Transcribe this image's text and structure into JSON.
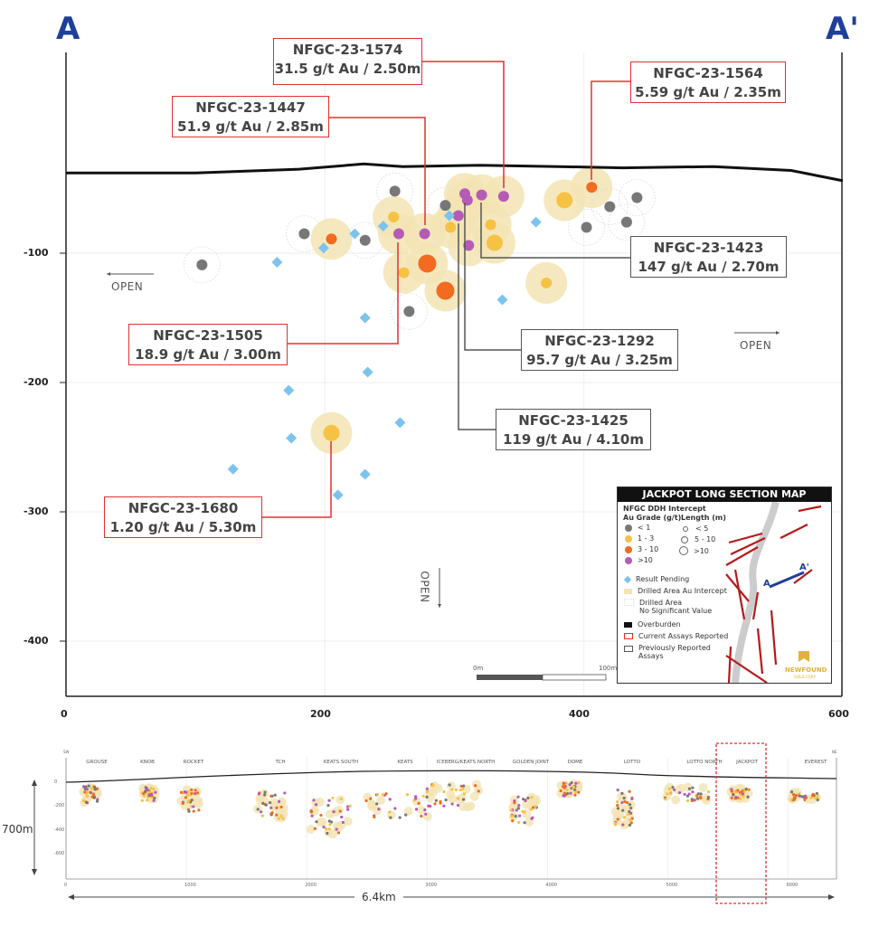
{
  "section_labels": {
    "start": "A",
    "end": "A'"
  },
  "axes": {
    "x_ticks": [
      0,
      200,
      400,
      600
    ],
    "y_ticks": [
      -100,
      -200,
      -300,
      -400
    ],
    "xlim": [
      0,
      600
    ],
    "ylim": [
      -460,
      95
    ]
  },
  "open_labels": {
    "left": "OPEN",
    "right": "OPEN",
    "down": "OPEN"
  },
  "scale_bar": {
    "start": "0m",
    "end": "100m"
  },
  "colors": {
    "lt1": "#777777",
    "g1_3": "#f6c244",
    "g3_10": "#f26b21",
    "gt10": "#b65bb5",
    "pending": "#7cc4ee",
    "halo": "#f3e4b4",
    "current": "#e03030",
    "previous": "#555555",
    "overburden": "#111111",
    "section_line": "#1e3f9a"
  },
  "overburden": [
    [
      0,
      -38
    ],
    [
      100,
      -38
    ],
    [
      180,
      -35
    ],
    [
      230,
      -31
    ],
    [
      260,
      -33
    ],
    [
      320,
      -32
    ],
    [
      380,
      -33
    ],
    [
      430,
      -34
    ],
    [
      500,
      -33
    ],
    [
      560,
      -36
    ],
    [
      600,
      -44
    ]
  ],
  "intercepts": [
    {
      "x": 254,
      "y": -52,
      "grade": "lt1",
      "halo": "none"
    },
    {
      "x": 184,
      "y": -85,
      "grade": "lt1",
      "halo": "none"
    },
    {
      "x": 205,
      "y": -89,
      "grade": "g3_10",
      "halo": "au"
    },
    {
      "x": 231,
      "y": -90,
      "grade": "lt1",
      "halo": "none"
    },
    {
      "x": 253,
      "y": -72,
      "grade": "g1_3",
      "halo": "au"
    },
    {
      "x": 257,
      "y": -85,
      "grade": "gt10",
      "halo": "au"
    },
    {
      "x": 277,
      "y": -85,
      "grade": "gt10",
      "halo": "au"
    },
    {
      "x": 279,
      "y": -108,
      "grade": "g3_10",
      "halo": "au",
      "big": true
    },
    {
      "x": 261,
      "y": -115,
      "grade": "g1_3",
      "halo": "au"
    },
    {
      "x": 293,
      "y": -129,
      "grade": "g3_10",
      "halo": "au",
      "big": true
    },
    {
      "x": 265,
      "y": -145,
      "grade": "lt1",
      "halo": "none"
    },
    {
      "x": 293,
      "y": -63,
      "grade": "lt1",
      "halo": "none"
    },
    {
      "x": 303,
      "y": -71,
      "grade": "gt10",
      "halo": "au"
    },
    {
      "x": 297,
      "y": -80,
      "grade": "g1_3",
      "halo": "au"
    },
    {
      "x": 308,
      "y": -54,
      "grade": "gt10",
      "halo": "au"
    },
    {
      "x": 310,
      "y": -59,
      "grade": "gt10",
      "halo": "au"
    },
    {
      "x": 321,
      "y": -55,
      "grade": "gt10",
      "halo": "au"
    },
    {
      "x": 338,
      "y": -56,
      "grade": "gt10",
      "halo": "au"
    },
    {
      "x": 328,
      "y": -78,
      "grade": "g1_3",
      "halo": "au"
    },
    {
      "x": 331,
      "y": -92,
      "grade": "g1_3",
      "halo": "au",
      "big": true
    },
    {
      "x": 311,
      "y": -94,
      "grade": "gt10",
      "halo": "au"
    },
    {
      "x": 385,
      "y": -59,
      "grade": "g1_3",
      "halo": "au",
      "big": true
    },
    {
      "x": 406,
      "y": -49,
      "grade": "g3_10",
      "halo": "au"
    },
    {
      "x": 420,
      "y": -64,
      "grade": "lt1",
      "halo": "none"
    },
    {
      "x": 441,
      "y": -57,
      "grade": "lt1",
      "halo": "none"
    },
    {
      "x": 433,
      "y": -76,
      "grade": "lt1",
      "halo": "none"
    },
    {
      "x": 402,
      "y": -80,
      "grade": "lt1",
      "halo": "none"
    },
    {
      "x": 371,
      "y": -123,
      "grade": "g1_3",
      "halo": "au"
    },
    {
      "x": 105,
      "y": -109,
      "grade": "lt1",
      "halo": "none"
    },
    {
      "x": 205,
      "y": -239,
      "grade": "g1_3",
      "halo": "au",
      "big": true
    }
  ],
  "pending": [
    [
      223,
      -85
    ],
    [
      199,
      -96
    ],
    [
      245,
      -79
    ],
    [
      296,
      -71
    ],
    [
      231,
      -150
    ],
    [
      363,
      -76
    ],
    [
      337,
      -136
    ],
    [
      163,
      -107
    ],
    [
      233,
      -192
    ],
    [
      172,
      -206
    ],
    [
      174,
      -243
    ],
    [
      129,
      -267
    ],
    [
      258,
      -231
    ],
    [
      231,
      -271
    ],
    [
      210,
      -287
    ]
  ],
  "callouts": [
    {
      "id": "NFGC-23-1574",
      "text": "31.5 g/t Au / 2.50m",
      "status": "current"
    },
    {
      "id": "NFGC-23-1564",
      "text": "5.59 g/t Au / 2.35m",
      "status": "current"
    },
    {
      "id": "NFGC-23-1447",
      "text": "51.9 g/t Au / 2.85m",
      "status": "current"
    },
    {
      "id": "NFGC-23-1423",
      "text": "147 g/t Au / 2.70m",
      "status": "previous"
    },
    {
      "id": "NFGC-23-1505",
      "text": "18.9 g/t Au / 3.00m",
      "status": "current"
    },
    {
      "id": "NFGC-23-1292",
      "text": "95.7 g/t Au / 3.25m",
      "status": "previous"
    },
    {
      "id": "NFGC-23-1425",
      "text": "119 g/t Au / 4.10m",
      "status": "previous"
    },
    {
      "id": "NFGC-23-1680",
      "text": "1.20 g/t Au / 5.30m",
      "status": "current"
    }
  ],
  "legend": {
    "title": "JACKPOT LONG SECTION MAP",
    "subtitle": "NFGC DDH Intercept",
    "grade_header": "Au Grade (g/t)",
    "length_header": "Length (m)",
    "grades": [
      "< 1",
      "1 - 3",
      "3 - 10",
      ">10"
    ],
    "lengths": [
      "< 5",
      "5 - 10",
      ">10"
    ],
    "pending": "Result Pending",
    "au_intercept": "Drilled Area Au Intercept",
    "no_value_1": "Drilled Area",
    "no_value_2": "No Significant Value",
    "overburden": "Overburden",
    "current": "Current Assays Reported",
    "previous_1": "Previously Reported",
    "previous_2": "Assays",
    "map_a": "A",
    "map_a_prime": "A'",
    "logo_text": "NEWFOUND",
    "logo_sub": "GOLD CORP"
  },
  "overview": {
    "sw": "SW",
    "ne": "NE",
    "zones": [
      "GROUSE",
      "KNOB",
      "ROCKET",
      "TCH",
      "KEATS SOUTH",
      "KEATS",
      "ICEBERG/KEATS NORTH",
      "GOLDEN JOINT",
      "DOME",
      "LOTTO",
      "LOTTO NORTH",
      "JACKPOT",
      "EVEREST"
    ],
    "x_ticks": [
      "0",
      "1000",
      "2000",
      "3000",
      "4000",
      "5000",
      "6000"
    ],
    "y_ticks": [
      "0",
      "-200",
      "-400",
      "-600"
    ],
    "depth_label": "700m",
    "length_label": "6.4km",
    "highlight": "JACKPOT"
  }
}
